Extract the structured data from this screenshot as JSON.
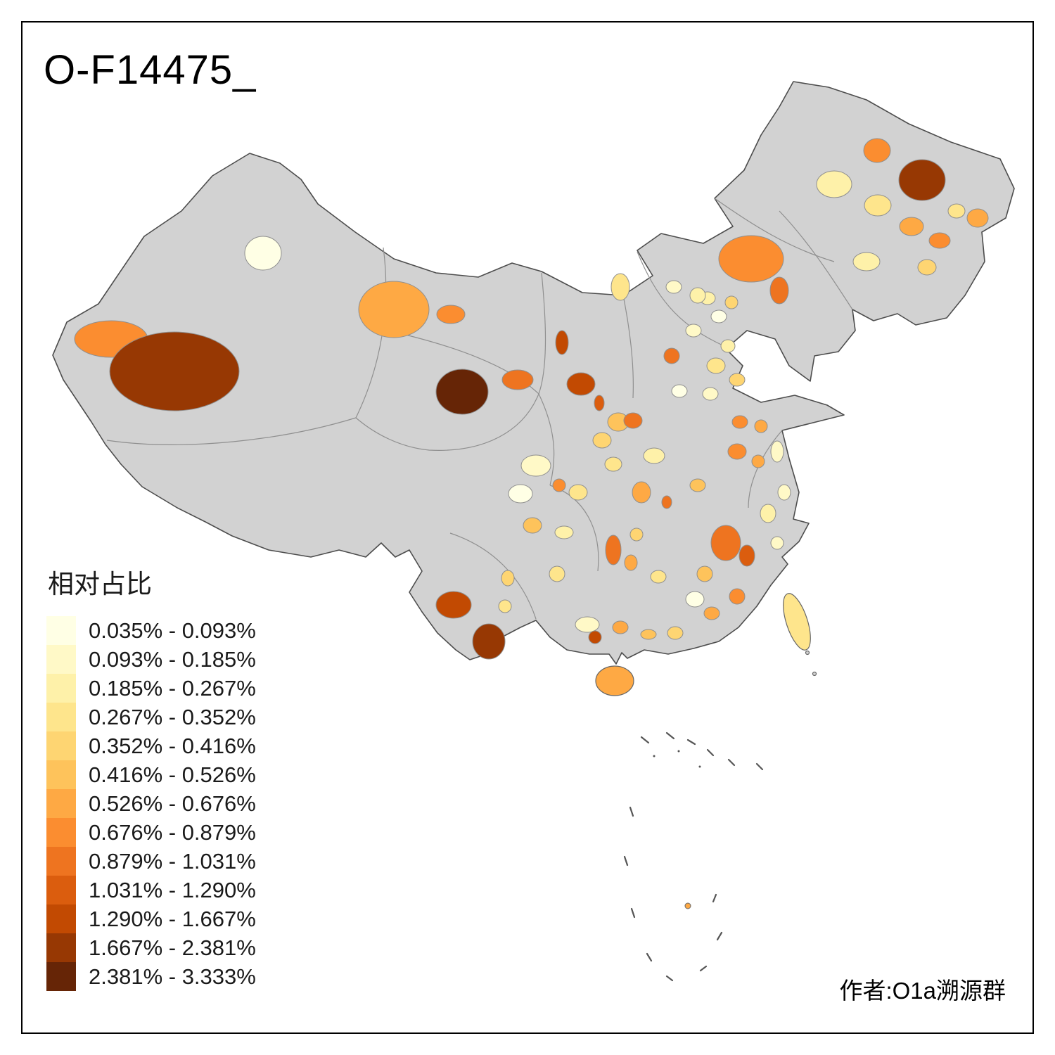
{
  "page": {
    "title": "O-F14475_",
    "author_credit": "作者:O1a溯源群"
  },
  "legend": {
    "title": "相对占比",
    "classes": [
      {
        "label": "0.035% - 0.093%",
        "color": "#FFFFE5"
      },
      {
        "label": "0.093% - 0.185%",
        "color": "#FFF9C7"
      },
      {
        "label": "0.185% - 0.267%",
        "color": "#FEF1A9"
      },
      {
        "label": "0.267% - 0.352%",
        "color": "#FEE58C"
      },
      {
        "label": "0.352% - 0.416%",
        "color": "#FED572"
      },
      {
        "label": "0.416% - 0.526%",
        "color": "#FEC35B"
      },
      {
        "label": "0.526% - 0.676%",
        "color": "#FEA944"
      },
      {
        "label": "0.676% - 0.879%",
        "color": "#FB8D30"
      },
      {
        "label": "0.879% - 1.031%",
        "color": "#EE7420"
      },
      {
        "label": "1.031% - 1.290%",
        "color": "#DB5D0E"
      },
      {
        "label": "1.290% - 1.667%",
        "color": "#C24A02"
      },
      {
        "label": "1.667% - 2.381%",
        "color": "#973803"
      },
      {
        "label": "2.381% - 3.333%",
        "color": "#662506"
      }
    ]
  },
  "map": {
    "base_fill": "#D2D2D2",
    "land_stroke": "#4D4D4D",
    "inner_border": "#8F8F8F",
    "background": "#FFFFFF"
  },
  "chart_data": {
    "type": "choropleth",
    "title": "O-F14475_",
    "geography": "China",
    "measure": "相对占比",
    "unit": "%",
    "class_breaks_percent": [
      0.035,
      0.093,
      0.185,
      0.267,
      0.352,
      0.416,
      0.526,
      0.676,
      0.879,
      1.031,
      1.29,
      1.667,
      2.381,
      3.333
    ],
    "class_labels": [
      "0.035% - 0.093%",
      "0.093% - 0.185%",
      "0.185% - 0.267%",
      "0.267% - 0.352%",
      "0.352% - 0.416%",
      "0.416% - 0.526%",
      "0.526% - 0.676%",
      "0.676% - 0.879%",
      "0.879% - 1.031%",
      "1.031% - 1.290%",
      "1.290% - 1.667%",
      "1.667% - 2.381%",
      "2.381% - 3.333%"
    ],
    "palette": [
      "#FFFFE5",
      "#FFF9C7",
      "#FEF1A9",
      "#FEE58C",
      "#FED572",
      "#FEC35B",
      "#FEA944",
      "#FB8D30",
      "#EE7420",
      "#DB5D0E",
      "#C24A02",
      "#973803",
      "#662506"
    ],
    "no_data_color": "#D2D2D2",
    "legend_position": "bottom-left",
    "annotations": [
      "作者:O1a溯源群"
    ]
  }
}
